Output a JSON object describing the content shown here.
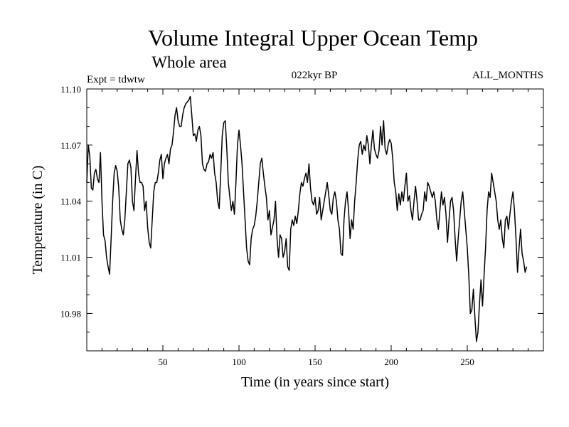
{
  "chart_data": {
    "type": "line",
    "title": "Volume Integral Upper Ocean Temp",
    "subtitle": "Whole area",
    "header_left": "Expt = tdwtw",
    "header_center": "022kyr BP",
    "header_right": "ALL_MONTHS",
    "xlabel": "Time (in years since start)",
    "ylabel": "Temperature (in C)",
    "xlim": [
      0,
      300
    ],
    "ylim": [
      10.96,
      11.1
    ],
    "x_ticks": [
      50,
      100,
      150,
      200,
      250
    ],
    "y_ticks": [
      "10.98",
      "11.01",
      "11.04",
      "11.07",
      "11.10"
    ],
    "x_step": 1,
    "x_start": 0,
    "series": [
      {
        "name": "Volume Integral Upper Ocean Temp",
        "color": "#000000",
        "values": [
          11.05,
          11.07,
          11.064,
          11.047,
          11.046,
          11.055,
          11.057,
          11.052,
          11.05,
          11.066,
          11.04,
          11.022,
          11.019,
          11.01,
          11.005,
          11.001,
          11.02,
          11.04,
          11.055,
          11.059,
          11.056,
          11.047,
          11.03,
          11.025,
          11.022,
          11.03,
          11.045,
          11.06,
          11.062,
          11.058,
          11.04,
          11.035,
          11.052,
          11.067,
          11.055,
          11.05,
          11.05,
          11.048,
          11.035,
          11.04,
          11.026,
          11.018,
          11.015,
          11.03,
          11.045,
          11.05,
          11.05,
          11.055,
          11.062,
          11.065,
          11.052,
          11.06,
          11.063,
          11.065,
          11.06,
          11.068,
          11.07,
          11.077,
          11.086,
          11.09,
          11.083,
          11.08,
          11.08,
          11.086,
          11.09,
          11.092,
          11.093,
          11.094,
          11.096,
          11.086,
          11.075,
          11.076,
          11.072,
          11.078,
          11.08,
          11.075,
          11.06,
          11.057,
          11.056,
          11.06,
          11.061,
          11.065,
          11.063,
          11.066,
          11.055,
          11.05,
          11.04,
          11.036,
          11.055,
          11.075,
          11.082,
          11.083,
          11.068,
          11.05,
          11.042,
          11.035,
          11.04,
          11.033,
          11.05,
          11.07,
          11.078,
          11.07,
          11.06,
          11.045,
          11.03,
          11.015,
          11.008,
          11.006,
          11.02,
          11.025,
          11.027,
          11.032,
          11.04,
          11.05,
          11.06,
          11.063,
          11.055,
          11.048,
          11.042,
          11.03,
          11.035,
          11.022,
          11.026,
          11.03,
          11.04,
          11.02,
          11.01,
          11.022,
          11.02,
          11.01,
          11.013,
          11.02,
          11.005,
          11.003,
          11.025,
          11.03,
          11.027,
          11.032,
          11.028,
          11.035,
          11.044,
          11.05,
          11.048,
          11.052,
          11.055,
          11.05,
          11.06,
          11.047,
          11.04,
          11.038,
          11.042,
          11.033,
          11.035,
          11.042,
          11.03,
          11.035,
          11.04,
          11.045,
          11.05,
          11.043,
          11.035,
          11.033,
          11.042,
          11.045,
          11.04,
          11.03,
          11.025,
          11.012,
          11.011,
          11.03,
          11.04,
          11.045,
          11.035,
          11.02,
          11.03,
          11.025,
          11.04,
          11.05,
          11.062,
          11.07,
          11.072,
          11.065,
          11.07,
          11.067,
          11.075,
          11.07,
          11.06,
          11.07,
          11.078,
          11.068,
          11.065,
          11.063,
          11.067,
          11.08,
          11.07,
          11.083,
          11.068,
          11.065,
          11.07,
          11.073,
          11.071,
          11.063,
          11.05,
          11.045,
          11.035,
          11.044,
          11.038,
          11.045,
          11.04,
          11.048,
          11.055,
          11.04,
          11.043,
          11.035,
          11.03,
          11.04,
          11.048,
          11.04,
          11.03,
          11.03,
          11.033,
          11.035,
          11.045,
          11.04,
          11.05,
          11.048,
          11.045,
          11.042,
          11.045,
          11.04,
          11.03,
          11.025,
          11.035,
          11.045,
          11.038,
          11.042,
          11.033,
          11.018,
          11.03,
          11.04,
          11.042,
          11.035,
          11.02,
          11.008,
          11.02,
          11.03,
          11.04,
          11.045,
          11.035,
          11.025,
          11.015,
          11.0,
          10.98,
          10.982,
          10.993,
          10.978,
          10.965,
          10.97,
          10.985,
          10.998,
          10.984,
          11.0,
          11.015,
          11.035,
          11.045,
          11.042,
          11.055,
          11.05,
          11.045,
          11.04,
          11.03,
          11.025,
          11.03,
          11.02,
          11.015,
          11.03,
          11.032,
          11.025,
          11.033,
          11.04,
          11.045,
          11.035,
          11.02,
          11.002,
          11.015,
          11.025,
          11.012,
          11.008,
          11.002,
          11.005
        ]
      }
    ]
  }
}
